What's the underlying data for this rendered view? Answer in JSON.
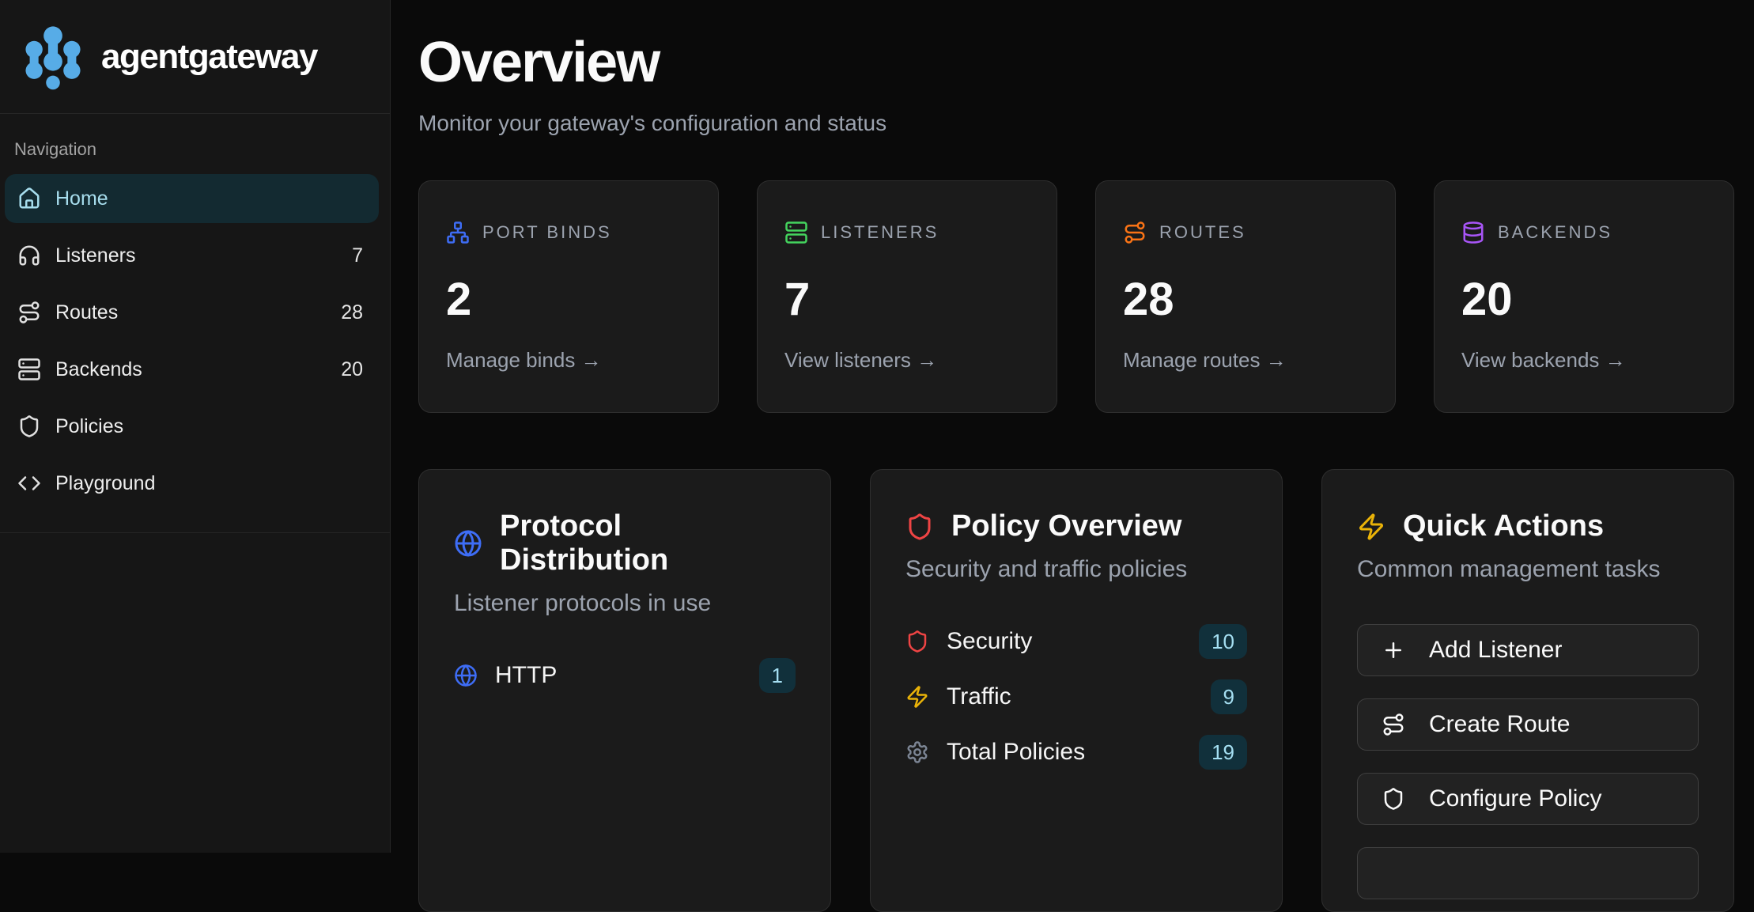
{
  "brand": {
    "name": "agentgateway"
  },
  "sidebar": {
    "section_label": "Navigation",
    "items": [
      {
        "label": "Home",
        "badge": ""
      },
      {
        "label": "Listeners",
        "badge": "7"
      },
      {
        "label": "Routes",
        "badge": "28"
      },
      {
        "label": "Backends",
        "badge": "20"
      },
      {
        "label": "Policies",
        "badge": ""
      },
      {
        "label": "Playground",
        "badge": ""
      }
    ]
  },
  "header": {
    "title": "Overview",
    "subtitle": "Monitor your gateway's configuration and status"
  },
  "stats": [
    {
      "label": "PORT BINDS",
      "value": "2",
      "link": "Manage binds →",
      "accent": "#3e6df5"
    },
    {
      "label": "LISTENERS",
      "value": "7",
      "link": "View listeners →",
      "accent": "#44d45e"
    },
    {
      "label": "ROUTES",
      "value": "28",
      "link": "Manage routes →",
      "accent": "#f97316"
    },
    {
      "label": "BACKENDS",
      "value": "20",
      "link": "View backends →",
      "accent": "#a855f7"
    }
  ],
  "protocol_card": {
    "title": "Protocol Distribution",
    "subtitle": "Listener protocols in use",
    "rows": [
      {
        "label": "HTTP",
        "badge": "1"
      }
    ]
  },
  "policy_card": {
    "title": "Policy Overview",
    "subtitle": "Security and traffic policies",
    "rows": [
      {
        "label": "Security",
        "badge": "10",
        "accent": "#ef4444"
      },
      {
        "label": "Traffic",
        "badge": "9",
        "accent": "#eab308"
      },
      {
        "label": "Total Policies",
        "badge": "19",
        "accent": "#7c8594"
      }
    ]
  },
  "actions_card": {
    "title": "Quick Actions",
    "subtitle": "Common management tasks",
    "buttons": [
      {
        "label": "Add Listener"
      },
      {
        "label": "Create Route"
      },
      {
        "label": "Configure Policy"
      }
    ]
  },
  "colors": {
    "page_bg": "#0a0a0a",
    "sidebar_bg": "#161616",
    "card_bg": "#1b1b1b",
    "card_border": "#2e2e2e",
    "active_nav_bg": "#132a31",
    "active_nav_text": "#a7dded",
    "muted_text": "#9ca3af",
    "badge_bg": "#11303b",
    "badge_text": "#a5dff2",
    "logo_blue": "#57ace7",
    "blue": "#3e6df5",
    "green": "#44d45e",
    "orange": "#f97316",
    "purple": "#a855f7",
    "red": "#ef4444",
    "yellow": "#eab308"
  }
}
